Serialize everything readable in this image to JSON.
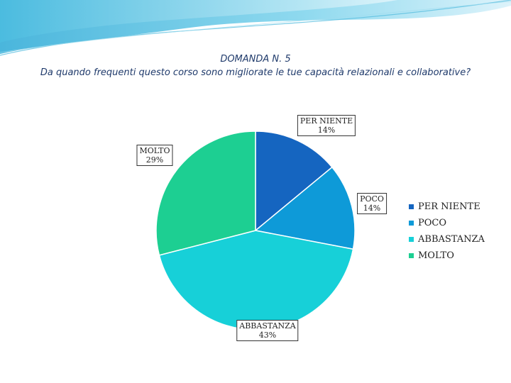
{
  "title_line1": "DOMANDA N. 5",
  "title_line2": "Da quando frequenti questo corso sono migliorate le tue capacità relazionali e collaborative?",
  "chart_data": {
    "type": "pie",
    "title": "DOMANDA N. 5 — Da quando frequenti questo corso sono migliorate le tue capacità relazionali e collaborative?",
    "labels": [
      "PER NIENTE",
      "POCO",
      "ABBASTANZA",
      "MOLTO"
    ],
    "values": [
      14,
      14,
      43,
      29
    ],
    "value_labels": [
      "14%",
      "14%",
      "43%",
      "29%"
    ],
    "colors": [
      "#1565c0",
      "#0e9ad8",
      "#17d0d8",
      "#1dcf92"
    ],
    "legend_position": "right",
    "start_angle": "12 o'clock",
    "direction": "clockwise"
  }
}
